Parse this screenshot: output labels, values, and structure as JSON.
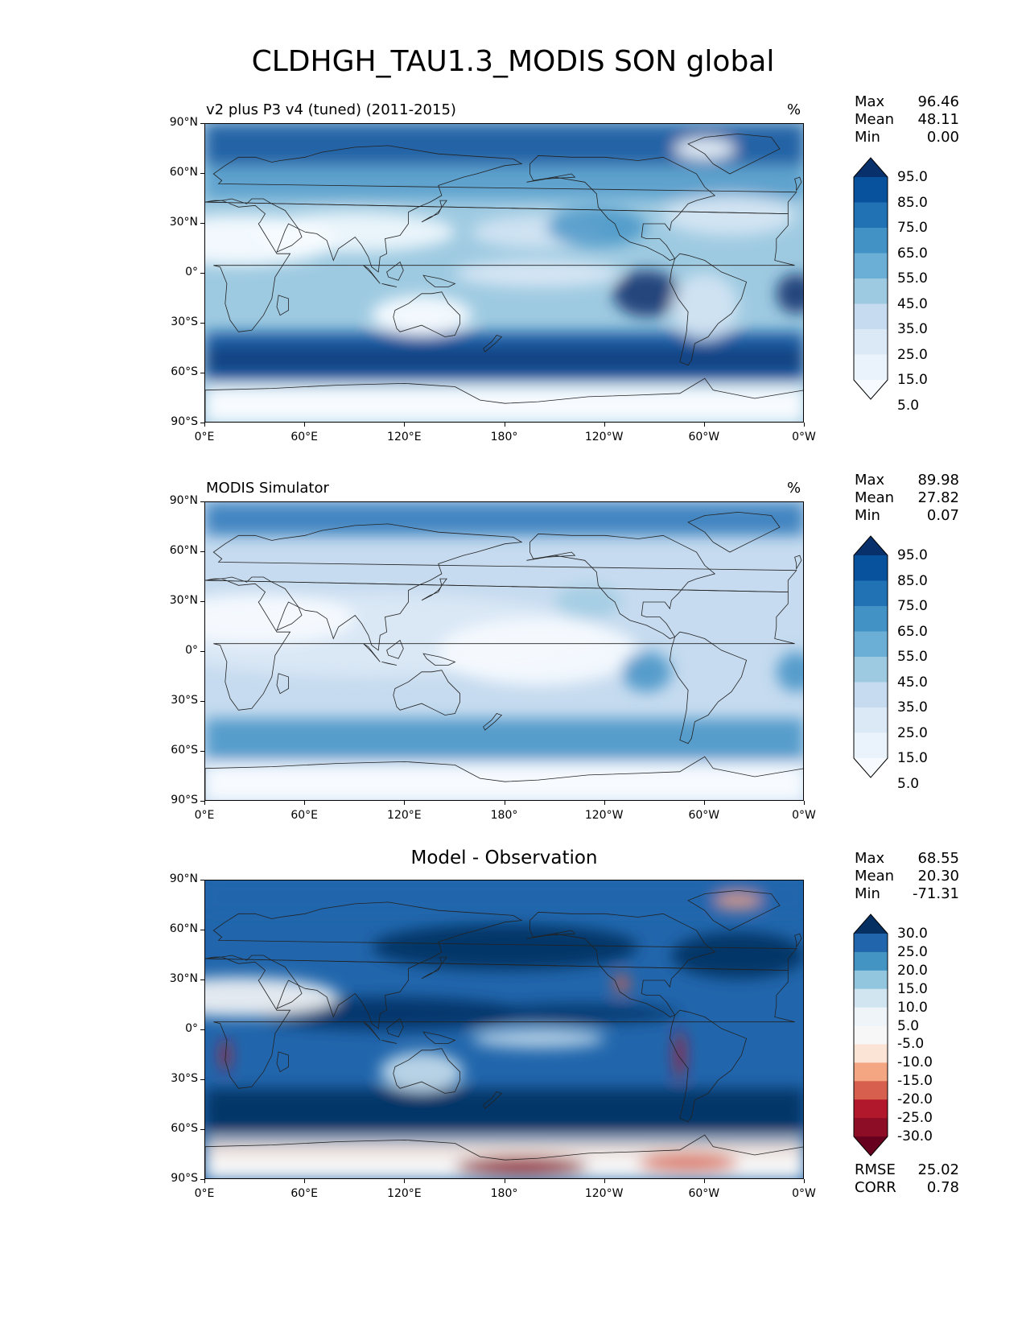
{
  "title": "CLDHGH_TAU1.3_MODIS SON global",
  "axes": {
    "lat_labels": [
      "90°N",
      "60°N",
      "30°N",
      "0°",
      "30°S",
      "60°S",
      "90°S"
    ],
    "lon_labels": [
      "0°E",
      "60°E",
      "120°E",
      "180°",
      "120°W",
      "60°W",
      "0°W"
    ]
  },
  "panels": [
    {
      "title": "v2 plus P3 v4 (tuned) (2011-2015)",
      "units": "%",
      "stats": [
        {
          "label": "Max",
          "value": "96.46"
        },
        {
          "label": "Mean",
          "value": "48.11"
        },
        {
          "label": "Min",
          "value": "0.00"
        }
      ],
      "colorbar": {
        "labels": [
          "95.0",
          "85.0",
          "75.0",
          "65.0",
          "55.0",
          "45.0",
          "35.0",
          "25.0",
          "15.0",
          "5.0"
        ],
        "colors": [
          "#08306b",
          "#08519c",
          "#2171b5",
          "#4292c6",
          "#6baed6",
          "#9ecae1",
          "#c6dbef",
          "#dbe9f6",
          "#eaf3fb",
          "#f7fbff"
        ]
      }
    },
    {
      "title": "MODIS Simulator",
      "units": "%",
      "stats": [
        {
          "label": "Max",
          "value": "89.98"
        },
        {
          "label": "Mean",
          "value": "27.82"
        },
        {
          "label": "Min",
          "value": "0.07"
        }
      ],
      "colorbar": {
        "labels": [
          "95.0",
          "85.0",
          "75.0",
          "65.0",
          "55.0",
          "45.0",
          "35.0",
          "25.0",
          "15.0",
          "5.0"
        ],
        "colors": [
          "#08306b",
          "#08519c",
          "#2171b5",
          "#4292c6",
          "#6baed6",
          "#9ecae1",
          "#c6dbef",
          "#dbe9f6",
          "#eaf3fb",
          "#f7fbff"
        ]
      }
    },
    {
      "title": "Model - Observation",
      "units": "",
      "stats": [
        {
          "label": "Max",
          "value": "68.55"
        },
        {
          "label": "Mean",
          "value": "20.30"
        },
        {
          "label": "Min",
          "value": "-71.31"
        }
      ],
      "stats_bottom": [
        {
          "label": "RMSE",
          "value": "25.02"
        },
        {
          "label": "CORR",
          "value": "0.78"
        }
      ],
      "colorbar": {
        "labels": [
          "30.0",
          "25.0",
          "20.0",
          "15.0",
          "10.0",
          "5.0",
          "-5.0",
          "-10.0",
          "-15.0",
          "-20.0",
          "-25.0",
          "-30.0"
        ],
        "colors": [
          "#053061",
          "#2166ac",
          "#4393c3",
          "#92c5de",
          "#d1e5f0",
          "#eef4f8",
          "#f7f7f7",
          "#fbe3d6",
          "#f4a582",
          "#d6604d",
          "#b2182b",
          "#8c0d25",
          "#67001f"
        ]
      }
    }
  ]
}
